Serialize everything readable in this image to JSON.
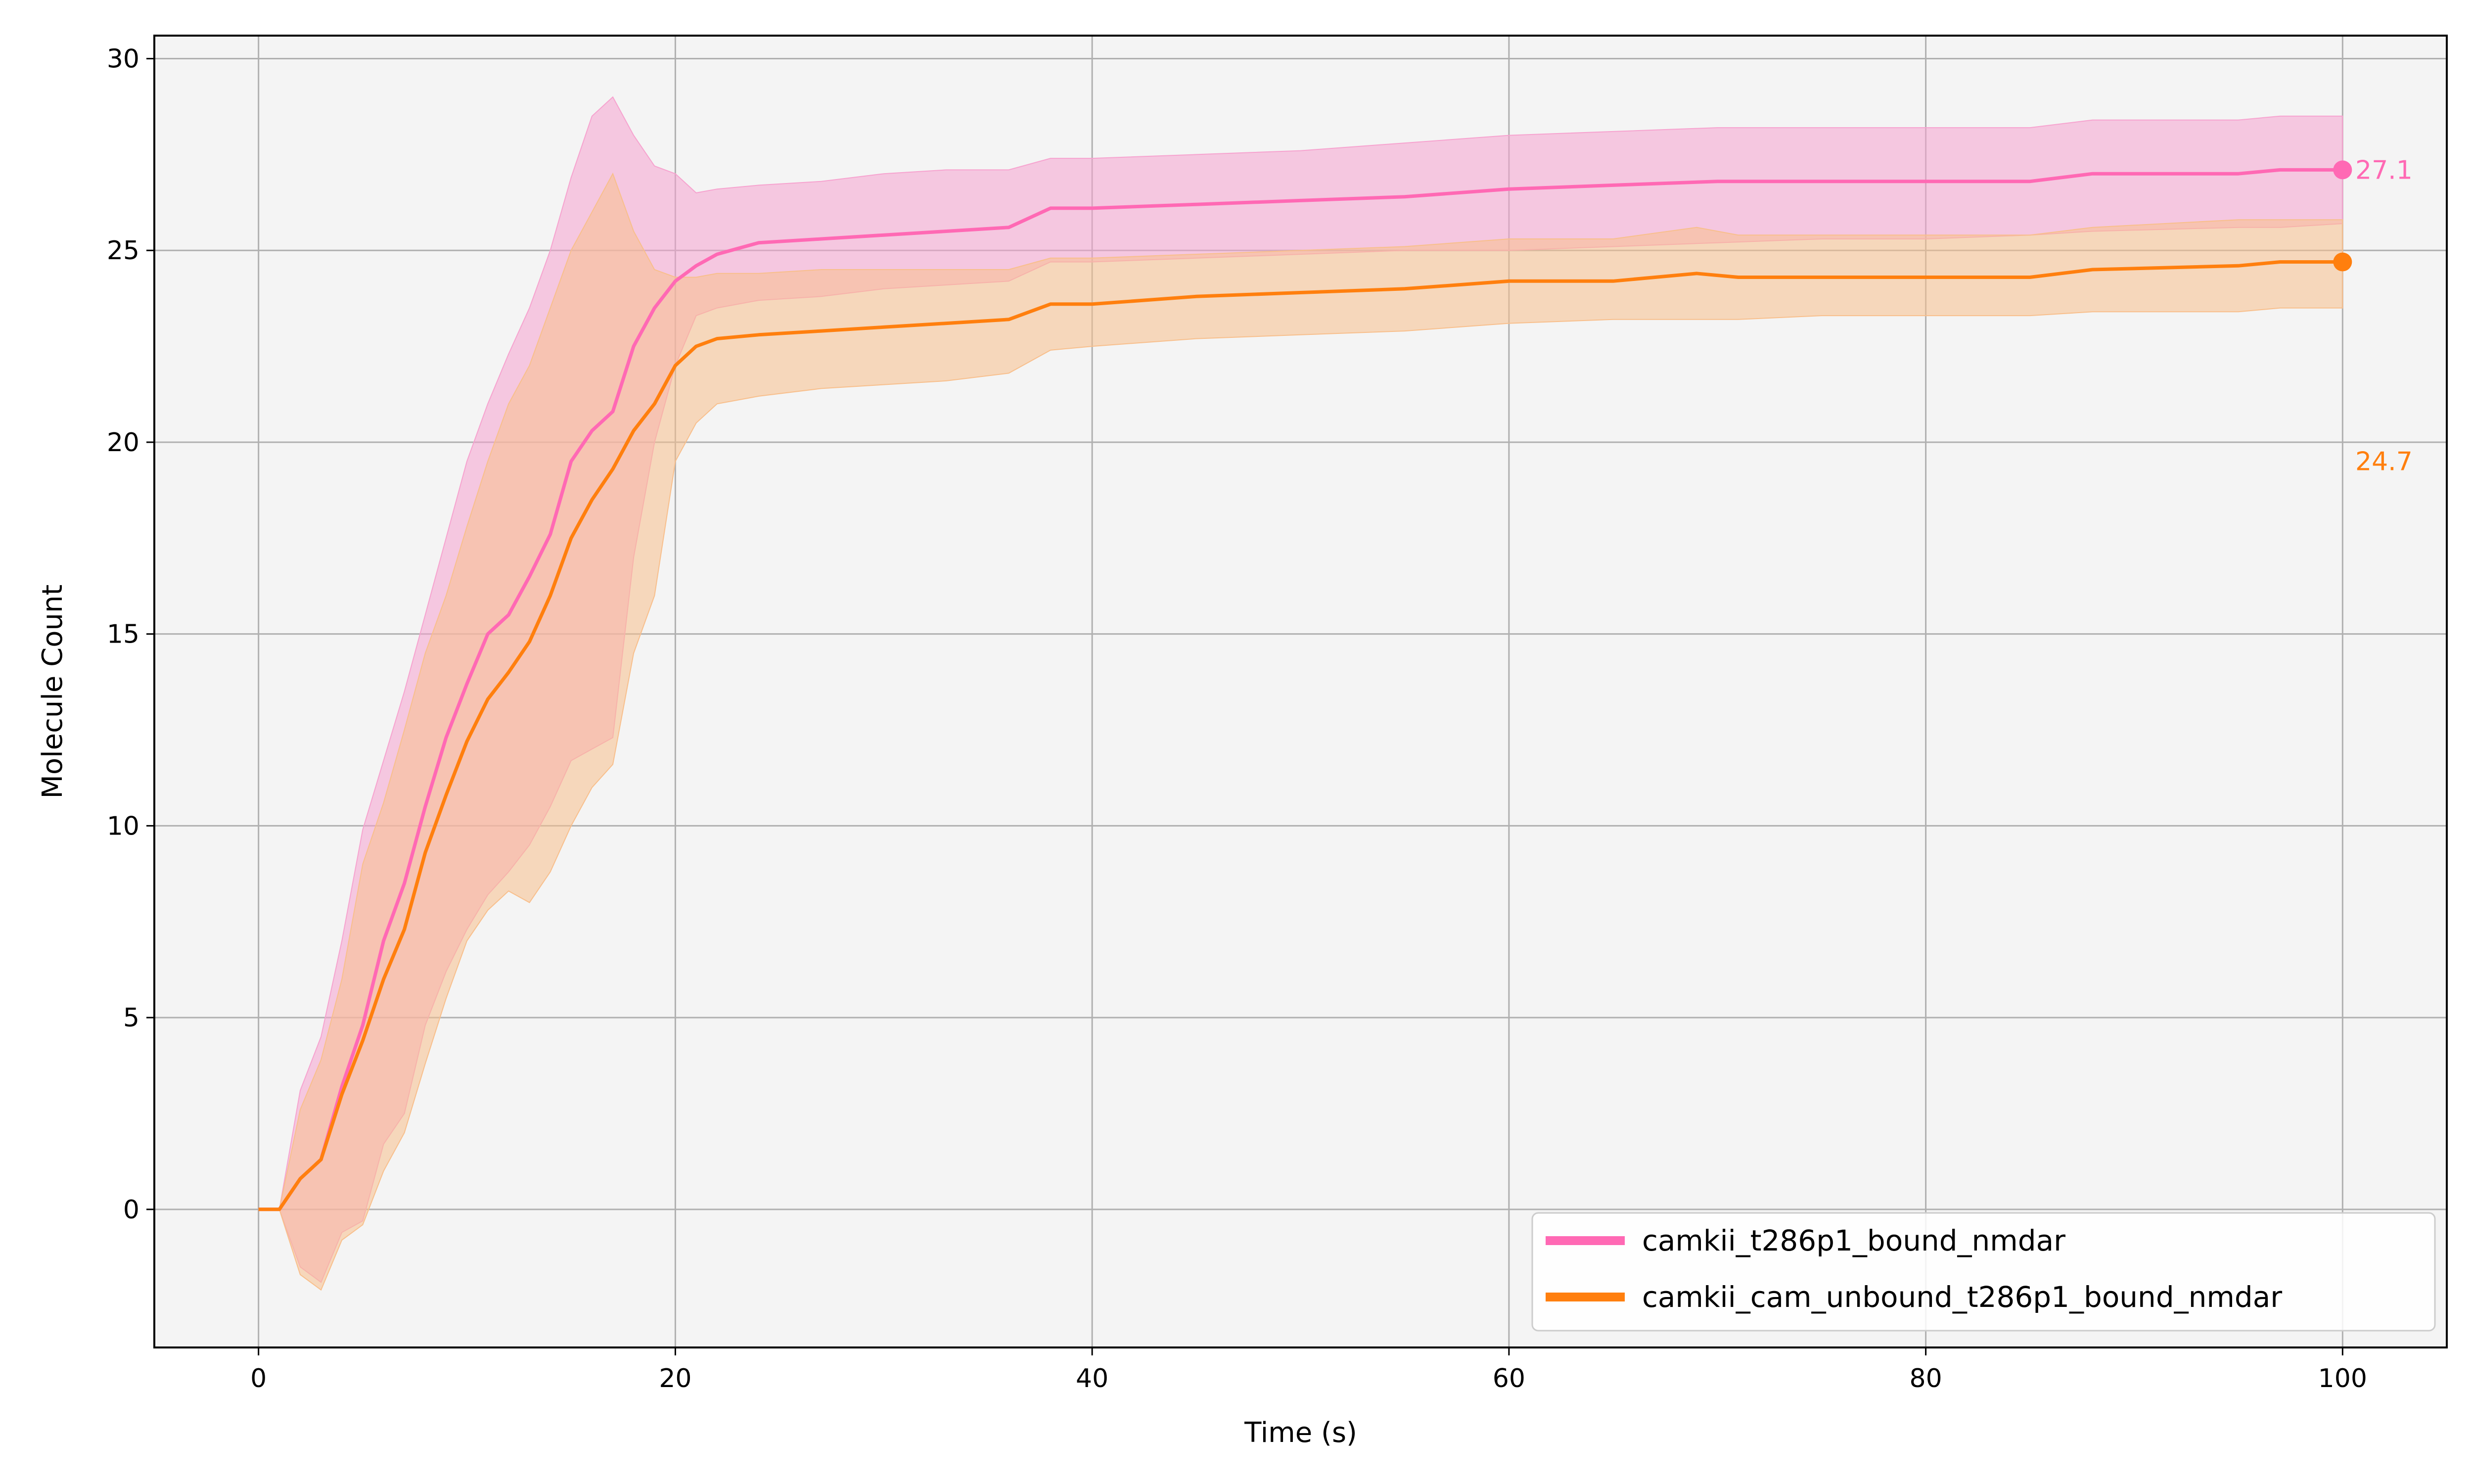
{
  "chart_data": {
    "type": "line",
    "title": "",
    "xlabel": "Time (s)",
    "ylabel": "Molecule Count",
    "xlim": [
      -5,
      105
    ],
    "ylim": [
      -3.6,
      30.6
    ],
    "xticks": [
      0,
      20,
      40,
      60,
      80,
      100
    ],
    "yticks": [
      0,
      5,
      10,
      15,
      20,
      25,
      30
    ],
    "grid": true,
    "legend_position": "bottom-right",
    "colors": {
      "background": "#f4f4f4",
      "grid": "#b0b0b0"
    },
    "series": [
      {
        "name": "camkii_t286p1_bound_nmdar",
        "color": "#ff69b4",
        "band_color": "#f6a3cf",
        "end_label": "27.1",
        "points": [
          [
            0,
            0,
            0,
            0
          ],
          [
            1,
            0,
            0,
            0
          ],
          [
            2,
            0.8,
            -1.5,
            3.1
          ],
          [
            3,
            1.3,
            -1.9,
            4.5
          ],
          [
            4,
            3.2,
            -0.6,
            7.0
          ],
          [
            5,
            4.8,
            -0.3,
            9.9
          ],
          [
            6,
            7.0,
            1.7,
            11.7
          ],
          [
            7,
            8.5,
            2.5,
            13.5
          ],
          [
            8,
            10.5,
            4.8,
            15.5
          ],
          [
            9,
            12.3,
            6.2,
            17.5
          ],
          [
            10,
            13.7,
            7.3,
            19.5
          ],
          [
            11,
            15.0,
            8.2,
            21.0
          ],
          [
            12,
            15.5,
            8.8,
            22.3
          ],
          [
            13,
            16.5,
            9.5,
            23.5
          ],
          [
            14,
            17.6,
            10.5,
            25.0
          ],
          [
            15,
            19.5,
            11.7,
            26.9
          ],
          [
            16,
            20.3,
            12.0,
            28.5
          ],
          [
            17,
            20.8,
            12.3,
            29.0
          ],
          [
            18,
            22.5,
            17.0,
            28.0
          ],
          [
            19,
            23.5,
            20.0,
            27.2
          ],
          [
            20,
            24.2,
            22.0,
            27.0
          ],
          [
            21,
            24.6,
            23.3,
            26.5
          ],
          [
            22,
            24.9,
            23.5,
            26.6
          ],
          [
            24,
            25.2,
            23.7,
            26.7
          ],
          [
            27,
            25.3,
            23.8,
            26.8
          ],
          [
            30,
            25.4,
            24.0,
            27.0
          ],
          [
            33,
            25.5,
            24.1,
            27.1
          ],
          [
            36,
            25.6,
            24.2,
            27.1
          ],
          [
            38,
            26.1,
            24.7,
            27.4
          ],
          [
            40,
            26.1,
            24.7,
            27.4
          ],
          [
            45,
            26.2,
            24.8,
            27.5
          ],
          [
            50,
            26.3,
            24.9,
            27.6
          ],
          [
            55,
            26.4,
            25.0,
            27.8
          ],
          [
            60,
            26.6,
            25.0,
            28.0
          ],
          [
            65,
            26.7,
            25.1,
            28.1
          ],
          [
            70,
            26.8,
            25.2,
            28.2
          ],
          [
            75,
            26.8,
            25.3,
            28.2
          ],
          [
            80,
            26.8,
            25.3,
            28.2
          ],
          [
            85,
            26.8,
            25.4,
            28.2
          ],
          [
            88,
            27.0,
            25.5,
            28.4
          ],
          [
            95,
            27.0,
            25.6,
            28.4
          ],
          [
            97,
            27.1,
            25.6,
            28.5
          ],
          [
            100,
            27.1,
            25.7,
            28.5
          ]
        ]
      },
      {
        "name": "camkii_cam_unbound_t286p1_bound_nmdar",
        "color": "#ff7f0e",
        "band_color": "#f8bf8c",
        "end_label": "24.7",
        "points": [
          [
            0,
            0,
            0,
            0
          ],
          [
            1,
            0,
            0,
            0
          ],
          [
            2,
            0.8,
            -1.7,
            2.6
          ],
          [
            3,
            1.3,
            -2.1,
            3.9
          ],
          [
            4,
            3.0,
            -0.8,
            6.0
          ],
          [
            5,
            4.4,
            -0.4,
            9.0
          ],
          [
            6,
            6.0,
            1.0,
            10.6
          ],
          [
            7,
            7.3,
            2.0,
            12.5
          ],
          [
            8,
            9.3,
            3.8,
            14.5
          ],
          [
            9,
            10.8,
            5.5,
            16.0
          ],
          [
            10,
            12.2,
            7.0,
            17.8
          ],
          [
            11,
            13.3,
            7.8,
            19.5
          ],
          [
            12,
            14.0,
            8.3,
            21.0
          ],
          [
            13,
            14.8,
            8.0,
            22.0
          ],
          [
            14,
            16.0,
            8.8,
            23.5
          ],
          [
            15,
            17.5,
            10.0,
            25.0
          ],
          [
            16,
            18.5,
            11.0,
            26.0
          ],
          [
            17,
            19.3,
            11.6,
            27.0
          ],
          [
            18,
            20.3,
            14.5,
            25.5
          ],
          [
            19,
            21.0,
            16.0,
            24.5
          ],
          [
            20,
            22.0,
            19.5,
            24.3
          ],
          [
            21,
            22.5,
            20.5,
            24.3
          ],
          [
            22,
            22.7,
            21.0,
            24.4
          ],
          [
            24,
            22.8,
            21.2,
            24.4
          ],
          [
            27,
            22.9,
            21.4,
            24.5
          ],
          [
            30,
            23.0,
            21.5,
            24.5
          ],
          [
            33,
            23.1,
            21.6,
            24.5
          ],
          [
            36,
            23.2,
            21.8,
            24.5
          ],
          [
            38,
            23.6,
            22.4,
            24.8
          ],
          [
            40,
            23.6,
            22.5,
            24.8
          ],
          [
            45,
            23.8,
            22.7,
            24.9
          ],
          [
            50,
            23.9,
            22.8,
            25.0
          ],
          [
            55,
            24.0,
            22.9,
            25.1
          ],
          [
            60,
            24.2,
            23.1,
            25.3
          ],
          [
            65,
            24.2,
            23.2,
            25.3
          ],
          [
            69,
            24.4,
            23.2,
            25.6
          ],
          [
            71,
            24.3,
            23.2,
            25.4
          ],
          [
            75,
            24.3,
            23.3,
            25.4
          ],
          [
            80,
            24.3,
            23.3,
            25.4
          ],
          [
            85,
            24.3,
            23.3,
            25.4
          ],
          [
            88,
            24.5,
            23.4,
            25.6
          ],
          [
            95,
            24.6,
            23.4,
            25.8
          ],
          [
            97,
            24.7,
            23.5,
            25.8
          ],
          [
            100,
            24.7,
            23.5,
            25.8
          ]
        ]
      }
    ]
  }
}
